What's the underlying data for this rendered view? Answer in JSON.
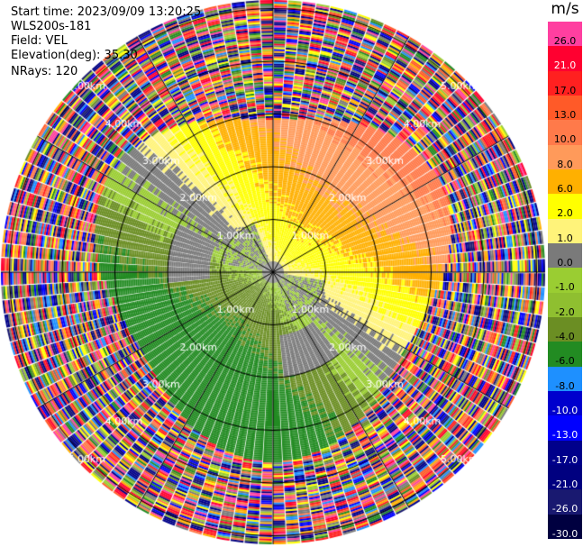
{
  "info": {
    "start_time": "Start time: 2023/09/09 13:20:25",
    "site": "WLS200s-181",
    "field": "Field: VEL",
    "elevation": "Elevation(deg): 35.30",
    "nrays": "NRays: 120"
  },
  "range_labels": [
    "1.00km",
    "2.00km",
    "3.00km",
    "4.00km",
    "5.00km"
  ],
  "colorbar": {
    "unit": "m/s",
    "levels": [
      {
        "label": "26.0",
        "color": "#ff3fa0",
        "text": "#000000"
      },
      {
        "label": "21.0",
        "color": "#ff0030",
        "text": "#ffffff"
      },
      {
        "label": "17.0",
        "color": "#ff2020",
        "text": "#000000"
      },
      {
        "label": "13.0",
        "color": "#ff5a28",
        "text": "#000000"
      },
      {
        "label": "10.0",
        "color": "#ff7a4a",
        "text": "#000000"
      },
      {
        "label": "8.0",
        "color": "#ff9a5a",
        "text": "#000000"
      },
      {
        "label": "6.0",
        "color": "#ffb000",
        "text": "#000000"
      },
      {
        "label": "2.0",
        "color": "#ffff00",
        "text": "#000000"
      },
      {
        "label": "1.0",
        "color": "#fff37a",
        "text": "#000000"
      },
      {
        "label": "0.0",
        "color": "#7a7a7a",
        "text": "#000000"
      },
      {
        "label": "-1.0",
        "color": "#9acd32",
        "text": "#000000"
      },
      {
        "label": "-2.0",
        "color": "#8fbf30",
        "text": "#000000"
      },
      {
        "label": "-4.0",
        "color": "#6b8e23",
        "text": "#000000"
      },
      {
        "label": "-6.0",
        "color": "#228b22",
        "text": "#000000"
      },
      {
        "label": "-8.0",
        "color": "#1e90ff",
        "text": "#000000"
      },
      {
        "label": "-10.0",
        "color": "#0000cd",
        "text": "#ffffff"
      },
      {
        "label": "-13.0",
        "color": "#0000ff",
        "text": "#ffffff"
      },
      {
        "label": "-17.0",
        "color": "#00008b",
        "text": "#ffffff"
      },
      {
        "label": "-21.0",
        "color": "#000080",
        "text": "#ffffff"
      },
      {
        "label": "-26.0",
        "color": "#191970",
        "text": "#ffffff"
      },
      {
        "label": "-30.0",
        "color": "#000040",
        "text": "#ffffff"
      }
    ]
  }
}
